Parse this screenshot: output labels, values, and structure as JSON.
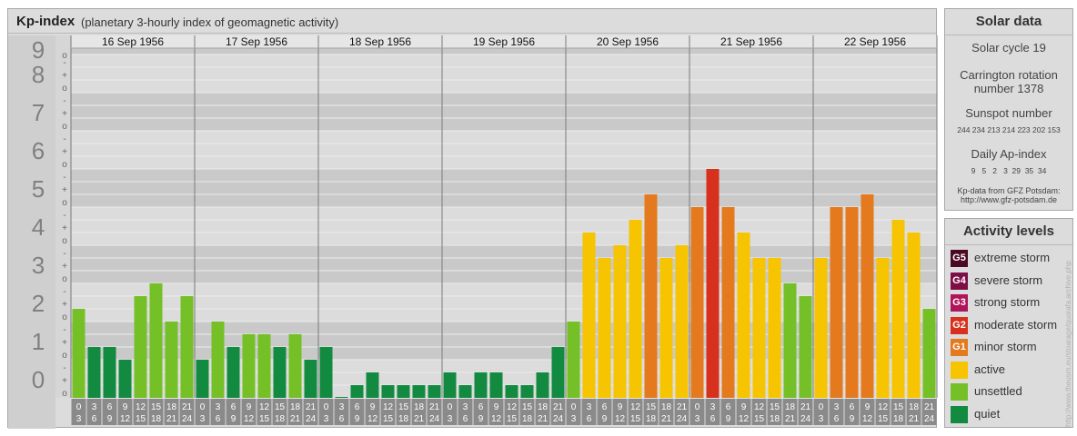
{
  "header": {
    "title": "Kp-index",
    "subtitle": "(planetary 3-hourly index of geomagnetic activity)"
  },
  "chart_data": {
    "type": "bar",
    "title": "Kp-index",
    "ylim": [
      0,
      9
    ],
    "y_ticks": [
      "0",
      "1",
      "2",
      "3",
      "4",
      "5",
      "6",
      "7",
      "8",
      "9"
    ],
    "minor_ticks": [
      "o",
      "+",
      "-"
    ],
    "days": [
      "16 Sep 1956",
      "17 Sep 1956",
      "18 Sep 1956",
      "19 Sep 1956",
      "20 Sep 1956",
      "21 Sep 1956",
      "22 Sep 1956"
    ],
    "hour_labels": [
      [
        "0",
        "3"
      ],
      [
        "3",
        "6"
      ],
      [
        "6",
        "9"
      ],
      [
        "9",
        "12"
      ],
      [
        "12",
        "15"
      ],
      [
        "15",
        "18"
      ],
      [
        "18",
        "21"
      ],
      [
        "21",
        "24"
      ]
    ],
    "values": [
      [
        2.333,
        1.333,
        1.333,
        1.0,
        2.667,
        3.0,
        2.0,
        2.667
      ],
      [
        1.0,
        2.0,
        1.333,
        1.667,
        1.667,
        1.333,
        1.667,
        1.0
      ],
      [
        1.333,
        0.0,
        0.333,
        0.667,
        0.333,
        0.333,
        0.333,
        0.333
      ],
      [
        0.667,
        0.333,
        0.667,
        0.667,
        0.333,
        0.333,
        0.667,
        1.333
      ],
      [
        2.0,
        4.333,
        3.667,
        4.0,
        4.667,
        5.333,
        3.667,
        4.0
      ],
      [
        5.0,
        6.0,
        5.0,
        4.333,
        3.667,
        3.667,
        3.0,
        2.667
      ],
      [
        3.667,
        5.0,
        5.0,
        5.333,
        3.667,
        4.667,
        4.333,
        2.333
      ]
    ],
    "level_colors": {
      "quiet": "#128a40",
      "unsettled": "#74c026",
      "active": "#f6c400",
      "minor": "#e4791d",
      "moderate": "#d7311e",
      "strong": "#b0145a",
      "severe": "#7e0f46",
      "extreme": "#4a0a24"
    }
  },
  "solar": {
    "title": "Solar data",
    "cycle": "Solar cycle 19",
    "carrington_line1": "Carrington rotation",
    "carrington_line2": "number 1378",
    "sunspot_label": "Sunspot number",
    "sunspot_values": "244 234 213 214 223 202 153",
    "ap_label": "Daily Ap-index",
    "ap_values": "9   5   2   3  29  35  34",
    "source_line1": "Kp-data from GFZ Potsdam:",
    "source_line2": "http://www.gfz-potsdam.de"
  },
  "activity": {
    "title": "Activity levels",
    "levels": [
      {
        "code": "G5",
        "label": "extreme storm",
        "color": "#4a0a24"
      },
      {
        "code": "G4",
        "label": "severe storm",
        "color": "#7e0f46"
      },
      {
        "code": "G3",
        "label": "strong storm",
        "color": "#b0145a"
      },
      {
        "code": "G2",
        "label": "moderate storm",
        "color": "#d7311e"
      },
      {
        "code": "G1",
        "label": "minor storm",
        "color": "#e4791d"
      },
      {
        "code": "",
        "label": "active",
        "color": "#f6c400"
      },
      {
        "code": "",
        "label": "unsettled",
        "color": "#74c026"
      },
      {
        "code": "",
        "label": "quiet",
        "color": "#128a40"
      }
    ]
  },
  "watermark": "http://www.theusm.eu/stoarage/quorafa.archive.php"
}
